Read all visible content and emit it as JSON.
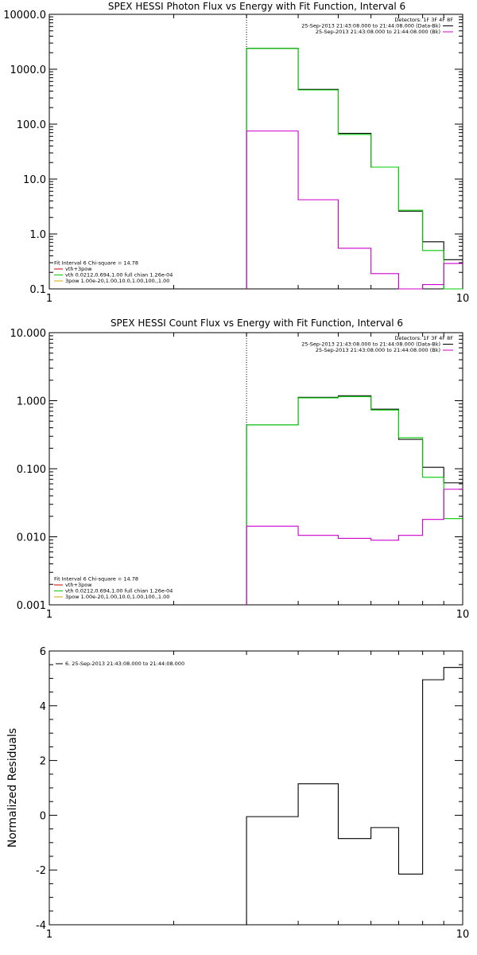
{
  "chart_data": [
    {
      "type": "line",
      "title": "SPEX HESSI Photon Flux vs Energy with Fit Function, Interval 6",
      "xlabel": "",
      "ylabel": "",
      "x_scale": "log",
      "y_scale": "log",
      "xlim": [
        1,
        10
      ],
      "ylim": [
        0.1,
        10000
      ],
      "x_ticks": [
        "1",
        "10"
      ],
      "y_ticks": [
        "0.1",
        "1.0",
        "10.0",
        "100.0",
        "1000.0",
        "10000.0"
      ],
      "fit_start_marker": 3,
      "bin_edges": [
        3,
        4,
        5,
        6,
        7,
        8,
        9,
        10
      ],
      "series": [
        {
          "color": "#000000",
          "values": [
            2400,
            430,
            68,
            16.5,
            2.6,
            0.72,
            0.34
          ]
        },
        {
          "color": "#00cc00",
          "values": [
            2400,
            420,
            65,
            16.5,
            2.7,
            0.5,
            0.1
          ]
        },
        {
          "color": "#cc00cc",
          "values": [
            75,
            4.2,
            0.55,
            0.19,
            0.095,
            0.12,
            0.29
          ]
        }
      ],
      "legend_top": [
        "Detectors: 1F 3F 4F 8F",
        "25-Sep-2013 21:43:08.000 to 21:44:08.000 (Data-Bk)",
        "25-Sep-2013 21:43:08.000 to 21:44:08.000 (Bk)"
      ],
      "legend_top_colors": [
        "#000000",
        "#cc00cc"
      ],
      "legend_bottom": [
        "Fit Interval 6   Chi-square = 14.78",
        "vth+3pow",
        "vth 0.0212,0.694,1.00  full chian 1.26e-04",
        "3pow 1.00e-20,1.00,10.0,1.00,100.,1.00"
      ],
      "legend_bottom_colors": [
        "#cc0000",
        "#00cc00",
        "#ccaa00"
      ]
    },
    {
      "type": "line",
      "title": "SPEX HESSI Count Flux vs Energy with Fit Function, Interval 6",
      "xlabel": "",
      "ylabel": "",
      "x_scale": "log",
      "y_scale": "log",
      "xlim": [
        1,
        10
      ],
      "ylim": [
        0.001,
        10
      ],
      "x_ticks": [
        "1",
        "10"
      ],
      "y_ticks": [
        "0.001",
        "0.010",
        "0.100",
        "1.000",
        "10.000"
      ],
      "fit_start_marker": 3,
      "bin_edges": [
        3,
        4,
        5,
        6,
        7,
        8,
        9,
        10
      ],
      "series": [
        {
          "color": "#000000",
          "values": [
            0.44,
            1.12,
            1.18,
            0.75,
            0.27,
            0.105,
            0.062
          ]
        },
        {
          "color": "#00cc00",
          "values": [
            0.44,
            1.1,
            1.15,
            0.73,
            0.285,
            0.075,
            0.0185
          ]
        },
        {
          "color": "#cc00cc",
          "values": [
            0.0143,
            0.0105,
            0.0095,
            0.0089,
            0.0105,
            0.018,
            0.05
          ]
        }
      ],
      "legend_top": [
        "Detectors: 1F 3F 4F 8F",
        "25-Sep-2013 21:43:08.000 to 21:44:08.000 (Data-Bk)",
        "25-Sep-2013 21:43:08.000 to 21:44:08.000 (Bk)"
      ],
      "legend_top_colors": [
        "#000000",
        "#cc00cc"
      ],
      "legend_bottom": [
        "Fit Interval 6   Chi-square = 14.78",
        "vth+3pow",
        "vth 0.0212,0.694,1.00  full chian 1.26e-04",
        "3pow 1.00e-20,1.00,10.0,1.00,100.,1.00"
      ],
      "legend_bottom_colors": [
        "#cc0000",
        "#00cc00",
        "#ccaa00"
      ]
    },
    {
      "type": "line",
      "title": "",
      "xlabel": "",
      "ylabel": "Normalized Residuals",
      "x_scale": "log",
      "y_scale": "linear",
      "xlim": [
        1,
        10
      ],
      "ylim": [
        -4,
        6
      ],
      "x_ticks": [
        "1",
        "10"
      ],
      "y_ticks": [
        "-4",
        "-2",
        "0",
        "2",
        "4",
        "6"
      ],
      "bin_edges": [
        3,
        4,
        5,
        6,
        7,
        8,
        9,
        10
      ],
      "series": [
        {
          "color": "#000000",
          "values": [
            -0.05,
            1.15,
            -0.85,
            -0.45,
            -2.15,
            4.95,
            5.4
          ]
        }
      ],
      "legend_top": [
        "6. 25-Sep-2013 21:43:08.000 to 21:44:08.000"
      ],
      "legend_top_colors": [
        "#000000"
      ]
    }
  ]
}
